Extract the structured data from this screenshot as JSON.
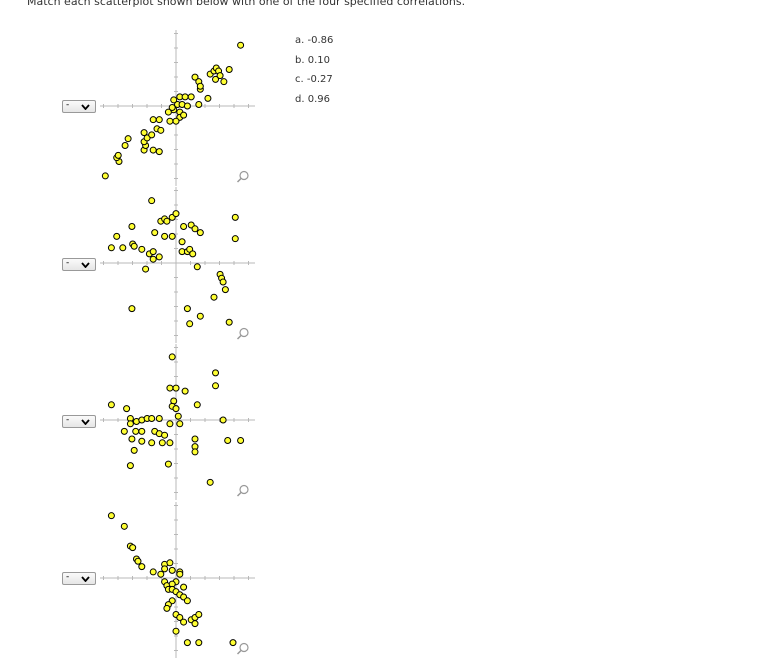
{
  "instruction": "Match each scatterplot shown below with one of the four specified correlations.",
  "options": [
    "a. -0.86",
    "b. 0.10",
    "c. -0.27",
    "d. 0.96"
  ],
  "dropdown_value": "-",
  "zoom_icon": "magnifier-icon",
  "chart_data": [
    {
      "type": "scatter",
      "points": [
        [
          -0.93,
          -0.92
        ],
        [
          -0.75,
          -0.73
        ],
        [
          -0.78,
          -0.68
        ],
        [
          -0.76,
          -0.65
        ],
        [
          -0.67,
          -0.52
        ],
        [
          -0.63,
          -0.43
        ],
        [
          -0.42,
          -0.58
        ],
        [
          -0.4,
          -0.52
        ],
        [
          -0.42,
          -0.47
        ],
        [
          -0.38,
          -0.42
        ],
        [
          -0.42,
          -0.35
        ],
        [
          -0.32,
          -0.38
        ],
        [
          -0.25,
          -0.3
        ],
        [
          -0.2,
          -0.32
        ],
        [
          -0.3,
          -0.58
        ],
        [
          -0.22,
          -0.6
        ],
        [
          -0.3,
          -0.18
        ],
        [
          -0.22,
          -0.18
        ],
        [
          -0.1,
          -0.08
        ],
        [
          -0.03,
          -0.05
        ],
        [
          0.05,
          -0.08
        ],
        [
          -0.05,
          -0.02
        ],
        [
          0.02,
          0.02
        ],
        [
          0.08,
          0.02
        ],
        [
          0.15,
          0.0
        ],
        [
          -0.03,
          0.08
        ],
        [
          0.05,
          0.12
        ],
        [
          0.12,
          0.12
        ],
        [
          0.2,
          0.12
        ],
        [
          0.05,
          -0.15
        ],
        [
          0.1,
          -0.12
        ],
        [
          0.0,
          -0.2
        ],
        [
          -0.08,
          -0.2
        ],
        [
          0.3,
          0.02
        ],
        [
          0.32,
          0.22
        ],
        [
          0.25,
          0.38
        ],
        [
          0.3,
          0.32
        ],
        [
          0.32,
          0.26
        ],
        [
          0.45,
          0.42
        ],
        [
          0.5,
          0.46
        ],
        [
          0.53,
          0.5
        ],
        [
          0.56,
          0.46
        ],
        [
          0.58,
          0.4
        ],
        [
          0.52,
          0.35
        ],
        [
          0.42,
          0.1
        ],
        [
          0.63,
          0.32
        ],
        [
          0.7,
          0.48
        ],
        [
          0.85,
          0.8
        ]
      ]
    },
    {
      "type": "scatter",
      "points": [
        [
          -0.85,
          0.2
        ],
        [
          -0.78,
          0.35
        ],
        [
          -0.7,
          0.2
        ],
        [
          -0.58,
          0.48
        ],
        [
          -0.57,
          0.25
        ],
        [
          -0.55,
          0.22
        ],
        [
          -0.45,
          0.18
        ],
        [
          -0.4,
          -0.08
        ],
        [
          -0.35,
          0.12
        ],
        [
          -0.3,
          0.15
        ],
        [
          -0.3,
          0.05
        ],
        [
          -0.28,
          0.4
        ],
        [
          -0.32,
          0.82
        ],
        [
          -0.2,
          0.55
        ],
        [
          -0.15,
          0.58
        ],
        [
          -0.15,
          0.35
        ],
        [
          -0.12,
          0.55
        ],
        [
          -0.05,
          0.6
        ],
        [
          -0.05,
          0.35
        ],
        [
          0.0,
          0.65
        ],
        [
          0.08,
          0.28
        ],
        [
          0.1,
          0.48
        ],
        [
          0.2,
          0.5
        ],
        [
          0.25,
          0.45
        ],
        [
          0.32,
          0.4
        ],
        [
          0.08,
          0.15
        ],
        [
          0.15,
          0.15
        ],
        [
          0.18,
          0.18
        ],
        [
          0.22,
          0.12
        ],
        [
          0.28,
          -0.05
        ],
        [
          -0.22,
          0.08
        ],
        [
          -0.58,
          -0.6
        ],
        [
          0.15,
          -0.6
        ],
        [
          0.18,
          -0.8
        ],
        [
          0.32,
          -0.7
        ],
        [
          0.5,
          -0.45
        ],
        [
          0.58,
          -0.15
        ],
        [
          0.6,
          -0.2
        ],
        [
          0.62,
          -0.25
        ],
        [
          0.65,
          -0.35
        ],
        [
          0.7,
          -0.78
        ],
        [
          0.78,
          0.6
        ],
        [
          0.78,
          0.32
        ]
      ]
    },
    {
      "type": "scatter",
      "points": [
        [
          -0.05,
          0.83
        ],
        [
          -0.08,
          0.42
        ],
        [
          0.0,
          0.42
        ],
        [
          0.12,
          0.38
        ],
        [
          -0.03,
          0.25
        ],
        [
          -0.05,
          0.18
        ],
        [
          0.0,
          0.15
        ],
        [
          0.03,
          0.05
        ],
        [
          0.28,
          0.2
        ],
        [
          0.52,
          0.62
        ],
        [
          0.52,
          0.45
        ],
        [
          -0.85,
          0.2
        ],
        [
          -0.65,
          0.15
        ],
        [
          -0.6,
          0.02
        ],
        [
          -0.52,
          -0.02
        ],
        [
          -0.45,
          0.0
        ],
        [
          -0.38,
          0.02
        ],
        [
          -0.32,
          0.02
        ],
        [
          -0.22,
          0.02
        ],
        [
          -0.45,
          -0.15
        ],
        [
          -0.53,
          -0.15
        ],
        [
          -0.68,
          -0.15
        ],
        [
          -0.6,
          -0.05
        ],
        [
          -0.58,
          -0.25
        ],
        [
          -0.55,
          -0.4
        ],
        [
          -0.45,
          -0.28
        ],
        [
          -0.32,
          -0.3
        ],
        [
          -0.28,
          -0.15
        ],
        [
          -0.22,
          -0.18
        ],
        [
          -0.15,
          -0.2
        ],
        [
          -0.18,
          -0.3
        ],
        [
          -0.08,
          -0.3
        ],
        [
          -0.08,
          -0.05
        ],
        [
          0.05,
          -0.05
        ],
        [
          0.25,
          -0.25
        ],
        [
          0.25,
          -0.35
        ],
        [
          0.25,
          -0.42
        ],
        [
          -0.6,
          -0.6
        ],
        [
          -0.1,
          -0.58
        ],
        [
          0.45,
          -0.82
        ],
        [
          0.62,
          0.0
        ],
        [
          0.68,
          -0.27
        ],
        [
          0.85,
          -0.27
        ]
      ]
    },
    {
      "type": "scatter",
      "points": [
        [
          -0.85,
          0.82
        ],
        [
          -0.68,
          0.68
        ],
        [
          -0.6,
          0.42
        ],
        [
          -0.57,
          0.4
        ],
        [
          -0.52,
          0.25
        ],
        [
          -0.5,
          0.22
        ],
        [
          -0.45,
          0.15
        ],
        [
          -0.3,
          0.08
        ],
        [
          -0.2,
          0.05
        ],
        [
          -0.15,
          -0.05
        ],
        [
          -0.12,
          -0.1
        ],
        [
          -0.1,
          -0.15
        ],
        [
          -0.15,
          0.18
        ],
        [
          -0.15,
          0.12
        ],
        [
          -0.08,
          0.2
        ],
        [
          -0.05,
          0.1
        ],
        [
          0.0,
          -0.05
        ],
        [
          -0.05,
          -0.08
        ],
        [
          0.05,
          0.08
        ],
        [
          0.05,
          0.05
        ],
        [
          0.1,
          -0.12
        ],
        [
          -0.05,
          -0.15
        ],
        [
          0.0,
          -0.18
        ],
        [
          0.05,
          -0.22
        ],
        [
          0.1,
          -0.25
        ],
        [
          0.15,
          -0.3
        ],
        [
          -0.05,
          -0.3
        ],
        [
          -0.1,
          -0.35
        ],
        [
          -0.12,
          -0.4
        ],
        [
          0.0,
          -0.48
        ],
        [
          0.05,
          -0.52
        ],
        [
          0.1,
          -0.58
        ],
        [
          0.2,
          -0.55
        ],
        [
          0.25,
          -0.52
        ],
        [
          0.3,
          -0.48
        ],
        [
          0.25,
          -0.6
        ],
        [
          0.0,
          -0.7
        ],
        [
          0.15,
          -0.85
        ],
        [
          0.3,
          -0.85
        ],
        [
          0.75,
          -0.85
        ]
      ]
    }
  ]
}
